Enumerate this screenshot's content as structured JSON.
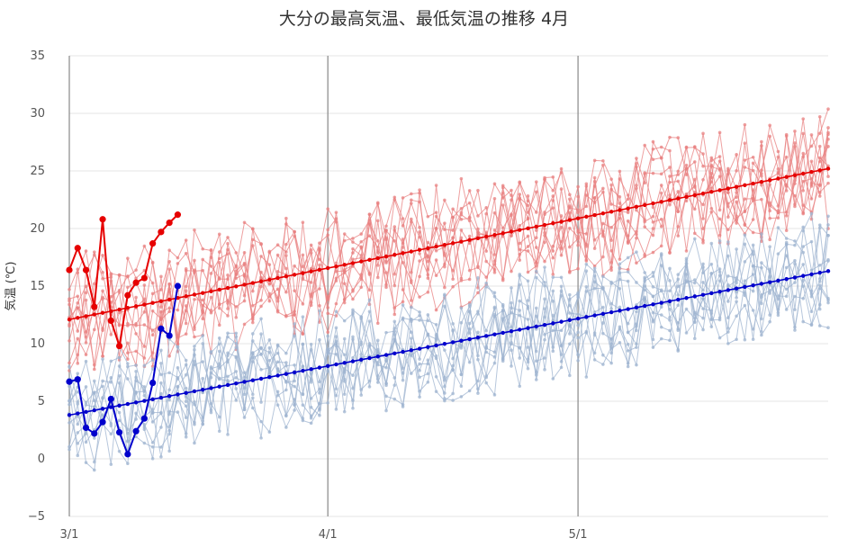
{
  "chart_data": {
    "type": "line",
    "title": "大分の最高気温、最低気温の推移 4月",
    "ylabel": "気温 (℃)",
    "ylim": [
      -5,
      35
    ],
    "yticks": [
      "35",
      "30",
      "25",
      "20",
      "15",
      "10",
      "5",
      "0",
      "−5"
    ],
    "xticks": [
      {
        "label": "3/1",
        "day": 1
      },
      {
        "label": "4/1",
        "day": 32
      },
      {
        "label": "5/1",
        "day": 62
      }
    ],
    "xlim": [
      1,
      92
    ],
    "grid": true,
    "colors": {
      "max_highlight": "#e60000",
      "min_highlight": "#0000cc",
      "max_history": "#e88080",
      "min_history": "#9fb4d0",
      "vgrid": "#888888",
      "hgrid": "#e6e6e6"
    },
    "max_normal": {
      "start": 12.1,
      "end": 25.2
    },
    "min_normal": {
      "start": 3.8,
      "end": 16.3
    },
    "max_current": [
      16.4,
      18.3,
      16.4,
      13.2,
      20.8,
      12.0,
      9.8,
      14.2,
      15.3,
      15.7,
      18.7,
      19.7,
      20.5,
      21.2
    ],
    "min_current": [
      6.7,
      6.9,
      2.7,
      2.2,
      3.2,
      5.2,
      2.3,
      0.4,
      2.4,
      3.5,
      6.6,
      11.3,
      10.7,
      15.0
    ],
    "history_years": 10
  }
}
